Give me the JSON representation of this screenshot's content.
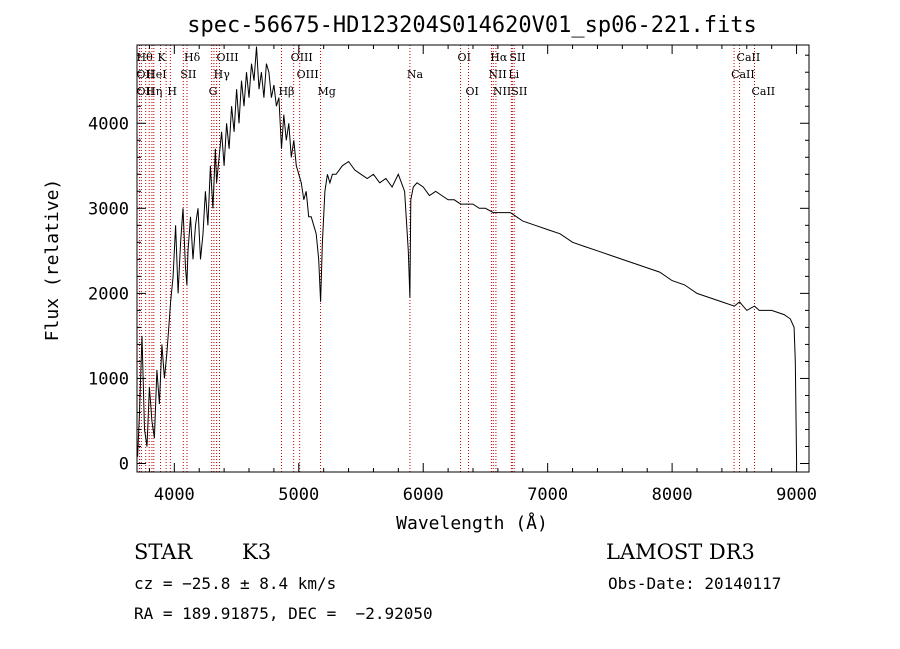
{
  "chart_data": {
    "type": "line",
    "title": "spec-56675-HD123204S014620V01_sp06-221.fits",
    "xlabel": "Wavelength (Å)",
    "ylabel": "Flux (relative)",
    "xlim": [
      3700,
      9100
    ],
    "ylim": [
      -100,
      4920
    ],
    "xticks": [
      4000,
      5000,
      6000,
      7000,
      8000,
      9000
    ],
    "xtick_labels": [
      "4000",
      "5000",
      "6000",
      "7000",
      "8000",
      "9000"
    ],
    "yticks": [
      0,
      1000,
      2000,
      3000,
      4000
    ],
    "ytick_labels": [
      "0",
      "1000",
      "2000",
      "3000",
      "4000"
    ],
    "series": [
      {
        "name": "flux",
        "x": [
          3705,
          3720,
          3740,
          3760,
          3780,
          3800,
          3820,
          3840,
          3860,
          3880,
          3900,
          3920,
          3940,
          3960,
          3970,
          3990,
          4010,
          4030,
          4050,
          4070,
          4090,
          4101,
          4110,
          4130,
          4150,
          4170,
          4190,
          4210,
          4230,
          4250,
          4270,
          4290,
          4310,
          4330,
          4340,
          4360,
          4380,
          4400,
          4420,
          4440,
          4460,
          4480,
          4500,
          4520,
          4540,
          4560,
          4580,
          4600,
          4620,
          4640,
          4660,
          4680,
          4700,
          4720,
          4740,
          4760,
          4780,
          4800,
          4820,
          4840,
          4861,
          4880,
          4900,
          4920,
          4940,
          4960,
          4980,
          5000,
          5020,
          5040,
          5060,
          5080,
          5100,
          5120,
          5140,
          5160,
          5175,
          5190,
          5210,
          5230,
          5250,
          5270,
          5300,
          5350,
          5400,
          5450,
          5500,
          5550,
          5600,
          5650,
          5700,
          5750,
          5800,
          5850,
          5880,
          5893,
          5900,
          5920,
          5950,
          6000,
          6050,
          6100,
          6150,
          6200,
          6250,
          6300,
          6350,
          6400,
          6450,
          6500,
          6563,
          6600,
          6650,
          6700,
          6750,
          6800,
          6900,
          7000,
          7100,
          7200,
          7300,
          7400,
          7500,
          7600,
          7700,
          7800,
          7900,
          8000,
          8100,
          8200,
          8300,
          8400,
          8500,
          8542,
          8600,
          8662,
          8700,
          8800,
          8900,
          8950,
          8980,
          8990,
          9000
        ],
        "values": [
          80,
          600,
          1500,
          400,
          200,
          900,
          500,
          300,
          1100,
          700,
          1400,
          1000,
          1300,
          1700,
          1900,
          2200,
          2800,
          2000,
          2600,
          3000,
          2300,
          2100,
          2500,
          2900,
          2400,
          2800,
          3000,
          2400,
          2700,
          3200,
          2800,
          3500,
          3000,
          3700,
          3300,
          3600,
          3900,
          3500,
          4000,
          3700,
          4200,
          3900,
          4400,
          4000,
          4500,
          4200,
          4600,
          4300,
          4700,
          4500,
          4900,
          4400,
          4600,
          4300,
          4700,
          4600,
          4300,
          4450,
          4200,
          4300,
          3700,
          4100,
          3800,
          4000,
          3600,
          3800,
          3500,
          3400,
          3300,
          3100,
          3200,
          2900,
          2900,
          2800,
          2700,
          2400,
          1900,
          2600,
          3200,
          3400,
          3300,
          3400,
          3400,
          3500,
          3550,
          3450,
          3400,
          3350,
          3400,
          3300,
          3350,
          3250,
          3400,
          3200,
          2500,
          1950,
          3100,
          3250,
          3300,
          3250,
          3150,
          3200,
          3150,
          3100,
          3100,
          3050,
          3050,
          3050,
          3000,
          3000,
          2950,
          2950,
          2950,
          2950,
          2900,
          2850,
          2800,
          2750,
          2700,
          2600,
          2550,
          2500,
          2450,
          2400,
          2350,
          2300,
          2250,
          2150,
          2100,
          2000,
          1950,
          1900,
          1850,
          1900,
          1800,
          1850,
          1800,
          1800,
          1750,
          1700,
          1600,
          1200,
          0
        ]
      }
    ],
    "lines": [
      {
        "x": 3720,
        "labels": [
          {
            "text": "Hθ",
            "row": 0
          },
          {
            "text": "OII",
            "row": 1
          },
          {
            "text": "OII",
            "row": 2
          }
        ]
      },
      {
        "x": 3735
      },
      {
        "x": 3770
      },
      {
        "x": 3798,
        "labels": [
          {
            "text": "HeI",
            "row": 1
          },
          {
            "text": "Hη",
            "row": 2
          }
        ]
      },
      {
        "x": 3820
      },
      {
        "x": 3835
      },
      {
        "x": 3889,
        "labels": [
          {
            "text": "K",
            "row": 0
          }
        ]
      },
      {
        "x": 3934
      },
      {
        "x": 3968,
        "labels": [
          {
            "text": "H",
            "row": 2
          }
        ]
      },
      {
        "x": 4072,
        "labels": [
          {
            "text": "SII",
            "row": 1
          }
        ]
      },
      {
        "x": 4102,
        "labels": [
          {
            "text": "Hδ",
            "row": 0
          }
        ]
      },
      {
        "x": 4300,
        "labels": [
          {
            "text": "G",
            "row": 2
          }
        ]
      },
      {
        "x": 4318
      },
      {
        "x": 4340,
        "labels": [
          {
            "text": "Hγ",
            "row": 1
          }
        ]
      },
      {
        "x": 4363,
        "labels": [
          {
            "text": "OIII",
            "row": 0
          }
        ]
      },
      {
        "x": 4861,
        "labels": [
          {
            "text": "Hβ",
            "row": 2
          }
        ]
      },
      {
        "x": 4959,
        "labels": [
          {
            "text": "OIII",
            "row": 0
          }
        ]
      },
      {
        "x": 5007,
        "labels": [
          {
            "text": "OIII",
            "row": 1
          }
        ]
      },
      {
        "x": 5175,
        "labels": [
          {
            "text": "Mg",
            "row": 2
          }
        ]
      },
      {
        "x": 5893,
        "labels": [
          {
            "text": "Na",
            "row": 1
          }
        ]
      },
      {
        "x": 6300,
        "labels": [
          {
            "text": "OI",
            "row": 0
          }
        ]
      },
      {
        "x": 6364,
        "labels": [
          {
            "text": "OI",
            "row": 2
          }
        ]
      },
      {
        "x": 6548,
        "labels": [
          {
            "text": "NII",
            "row": 1
          }
        ]
      },
      {
        "x": 6563,
        "labels": [
          {
            "text": "Hα",
            "row": 0
          }
        ]
      },
      {
        "x": 6584,
        "labels": [
          {
            "text": "NII",
            "row": 2
          }
        ]
      },
      {
        "x": 6708,
        "labels": [
          {
            "text": "Li",
            "row": 1
          }
        ]
      },
      {
        "x": 6716,
        "labels": [
          {
            "text": "SII",
            "row": 0
          }
        ]
      },
      {
        "x": 6731,
        "labels": [
          {
            "text": "SII",
            "row": 2
          }
        ]
      },
      {
        "x": 8498,
        "labels": [
          {
            "text": "CaII",
            "row": 1
          }
        ]
      },
      {
        "x": 8542,
        "labels": [
          {
            "text": "CaII",
            "row": 0
          }
        ]
      },
      {
        "x": 8662,
        "labels": [
          {
            "text": "CaII",
            "row": 2
          }
        ]
      }
    ],
    "line_color": "#c00000",
    "series_color": "#000000"
  },
  "info": {
    "object_type": "STAR",
    "subclass": "K3",
    "survey": "LAMOST DR3",
    "cz": "cz = −25.8 ± 8.4 km/s",
    "obs_date": "Obs-Date: 20140117",
    "coords": "RA = 189.91875, DEC =  −2.92050"
  }
}
